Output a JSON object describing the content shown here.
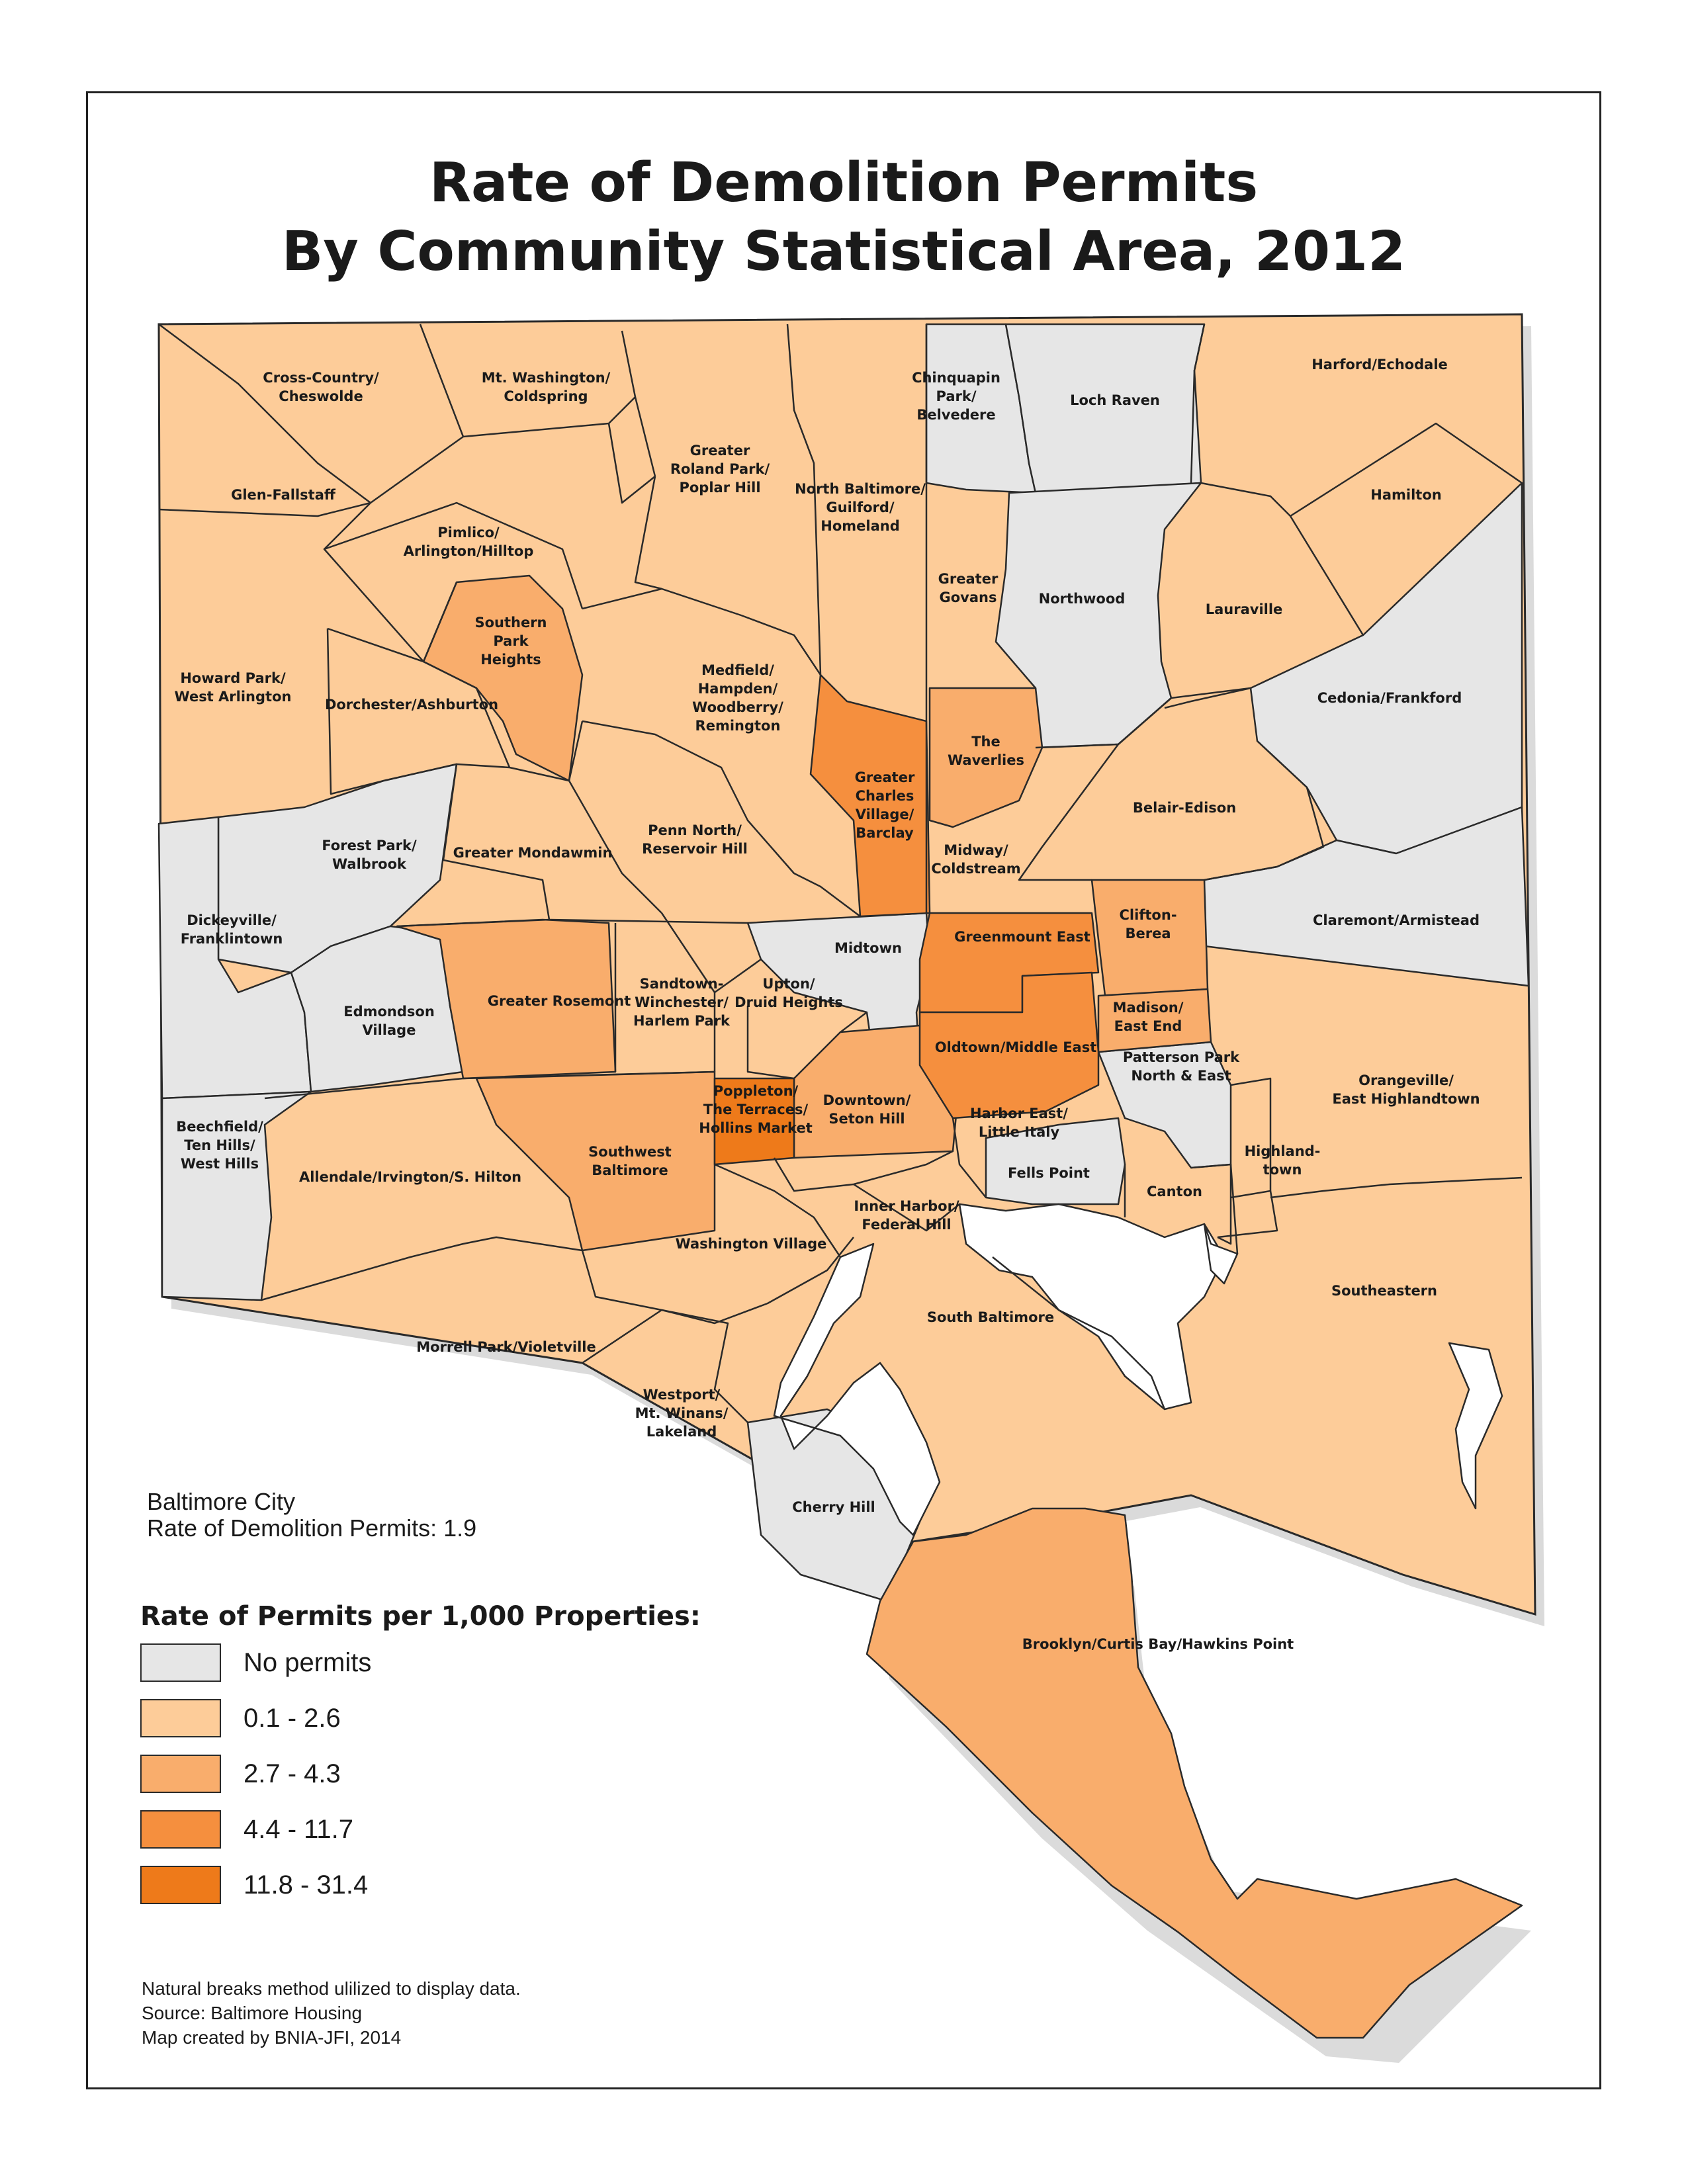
{
  "title": {
    "line1": "Rate of Demolition Permits",
    "line2": "By Community Statistical Area, 2012"
  },
  "city_info": {
    "line1": "Baltimore City",
    "line2": "Rate of Demolition Permits: 1.9"
  },
  "legend": {
    "title": "Rate of Permits per 1,000 Properties:",
    "items": [
      {
        "label": "No permits",
        "color": "#e6e6e6"
      },
      {
        "label": "0.1 - 2.6",
        "color": "#fdcc99"
      },
      {
        "label": "2.7 - 4.3",
        "color": "#f9ad6c"
      },
      {
        "label": "4.4 - 11.7",
        "color": "#f58f3e"
      },
      {
        "label": "11.8 - 31.4",
        "color": "#ee7a1a"
      }
    ]
  },
  "notes": {
    "line1": "Natural breaks method ulilized to display data.",
    "line2": "Source: Baltimore Housing",
    "line3": "Map created by BNIA-JFI, 2014"
  },
  "areas": [
    {
      "id": "cross-country",
      "lines": [
        "Cross-Country/",
        "Cheswolde"
      ],
      "class": 1
    },
    {
      "id": "mt-washington",
      "lines": [
        "Mt. Washington/",
        "Coldspring"
      ],
      "class": 1
    },
    {
      "id": "chinquapin",
      "lines": [
        "Chinquapin",
        "Park/",
        "Belvedere"
      ],
      "class": 0
    },
    {
      "id": "loch-raven",
      "lines": [
        "Loch Raven"
      ],
      "class": 0
    },
    {
      "id": "harford",
      "lines": [
        "Harford/Echodale"
      ],
      "class": 1
    },
    {
      "id": "glen-fallstaff",
      "lines": [
        "Glen-Fallstaff"
      ],
      "class": 1
    },
    {
      "id": "roland-park",
      "lines": [
        "Greater",
        "Roland Park/",
        "Poplar Hill"
      ],
      "class": 1
    },
    {
      "id": "north-baltimore",
      "lines": [
        "North Baltimore/",
        "Guilford/",
        "Homeland"
      ],
      "class": 1
    },
    {
      "id": "hamilton",
      "lines": [
        "Hamilton"
      ],
      "class": 1
    },
    {
      "id": "pimlico",
      "lines": [
        "Pimlico/",
        "Arlington/Hilltop"
      ],
      "class": 1
    },
    {
      "id": "govans",
      "lines": [
        "Greater",
        "Govans"
      ],
      "class": 1
    },
    {
      "id": "northwood",
      "lines": [
        "Northwood"
      ],
      "class": 0
    },
    {
      "id": "lauraville",
      "lines": [
        "Lauraville"
      ],
      "class": 1
    },
    {
      "id": "southern-park",
      "lines": [
        "Southern",
        "Park",
        "Heights"
      ],
      "class": 2
    },
    {
      "id": "howard-park",
      "lines": [
        "Howard Park/",
        "West Arlington"
      ],
      "class": 1
    },
    {
      "id": "medfield",
      "lines": [
        "Medfield/",
        "Hampden/",
        "Woodberry/",
        "Remington"
      ],
      "class": 1
    },
    {
      "id": "dorchester",
      "lines": [
        "Dorchester/Ashburton"
      ],
      "class": 1
    },
    {
      "id": "cedonia",
      "lines": [
        "Cedonia/Frankford"
      ],
      "class": 0
    },
    {
      "id": "waverlies",
      "lines": [
        "The",
        "Waverlies"
      ],
      "class": 2
    },
    {
      "id": "charles-village",
      "lines": [
        "Greater",
        "Charles",
        "Village/",
        "Barclay"
      ],
      "class": 3
    },
    {
      "id": "belair-edison",
      "lines": [
        "Belair-Edison"
      ],
      "class": 1
    },
    {
      "id": "forest-park",
      "lines": [
        "Forest Park/",
        "Walbrook"
      ],
      "class": 0
    },
    {
      "id": "penn-north",
      "lines": [
        "Penn North/",
        "Reservoir Hill"
      ],
      "class": 1
    },
    {
      "id": "mondawmin",
      "lines": [
        "Greater Mondawmin"
      ],
      "class": 1
    },
    {
      "id": "midway",
      "lines": [
        "Midway/",
        "Coldstream"
      ],
      "class": 1
    },
    {
      "id": "clifton",
      "lines": [
        "Clifton-",
        "Berea"
      ],
      "class": 2
    },
    {
      "id": "claremont",
      "lines": [
        "Claremont/Armistead"
      ],
      "class": 0
    },
    {
      "id": "dickeyville",
      "lines": [
        "Dickeyville/",
        "Franklintown"
      ],
      "class": 0
    },
    {
      "id": "midtown",
      "lines": [
        "Midtown"
      ],
      "class": 0
    },
    {
      "id": "greenmount",
      "lines": [
        "Greenmount East"
      ],
      "class": 3
    },
    {
      "id": "rosemont",
      "lines": [
        "Greater Rosemont"
      ],
      "class": 2
    },
    {
      "id": "sandtown",
      "lines": [
        "Sandtown-",
        "Winchester/",
        "Harlem Park"
      ],
      "class": 1
    },
    {
      "id": "upton",
      "lines": [
        "Upton/",
        "Druid Heights"
      ],
      "class": 1
    },
    {
      "id": "edmondson",
      "lines": [
        "Edmondson",
        "Village"
      ],
      "class": 0
    },
    {
      "id": "madison",
      "lines": [
        "Madison/",
        "East End"
      ],
      "class": 2
    },
    {
      "id": "oldtown",
      "lines": [
        "Oldtown/Middle East"
      ],
      "class": 3
    },
    {
      "id": "patterson",
      "lines": [
        "Patterson Park",
        "North & East"
      ],
      "class": 0
    },
    {
      "id": "orangeville",
      "lines": [
        "Orangeville/",
        "East Highlandtown"
      ],
      "class": 1
    },
    {
      "id": "poppleton",
      "lines": [
        "Poppleton/",
        "The Terraces/",
        "Hollins Market"
      ],
      "class": 4
    },
    {
      "id": "downtown",
      "lines": [
        "Downtown/",
        "Seton Hill"
      ],
      "class": 2
    },
    {
      "id": "harbor-east",
      "lines": [
        "Harbor East/",
        "Little Italy"
      ],
      "class": 1
    },
    {
      "id": "beechfield",
      "lines": [
        "Beechfield/",
        "Ten Hills/",
        "West Hills"
      ],
      "class": 0
    },
    {
      "id": "southwest",
      "lines": [
        "Southwest",
        "Baltimore"
      ],
      "class": 2
    },
    {
      "id": "allendale",
      "lines": [
        "Allendale/Irvington/S. Hilton"
      ],
      "class": 1
    },
    {
      "id": "highlandtown",
      "lines": [
        "Highland-",
        "town"
      ],
      "class": 1
    },
    {
      "id": "fells-point",
      "lines": [
        "Fells Point"
      ],
      "class": 0
    },
    {
      "id": "canton",
      "lines": [
        "Canton"
      ],
      "class": 1
    },
    {
      "id": "inner-harbor",
      "lines": [
        "Inner Harbor/",
        "Federal Hill"
      ],
      "class": 1
    },
    {
      "id": "washington-village",
      "lines": [
        "Washington Village"
      ],
      "class": 1
    },
    {
      "id": "southeastern",
      "lines": [
        "Southeastern"
      ],
      "class": 1
    },
    {
      "id": "south-baltimore",
      "lines": [
        "South Baltimore"
      ],
      "class": 1
    },
    {
      "id": "morrell-park",
      "lines": [
        "Morrell Park/Violetville"
      ],
      "class": 1
    },
    {
      "id": "westport",
      "lines": [
        "Westport/",
        "Mt. Winans/",
        "Lakeland"
      ],
      "class": 1
    },
    {
      "id": "cherry-hill",
      "lines": [
        "Cherry Hill"
      ],
      "class": 0
    },
    {
      "id": "brooklyn",
      "lines": [
        "Brooklyn/Curtis Bay/Hawkins Point"
      ],
      "class": 2
    }
  ]
}
